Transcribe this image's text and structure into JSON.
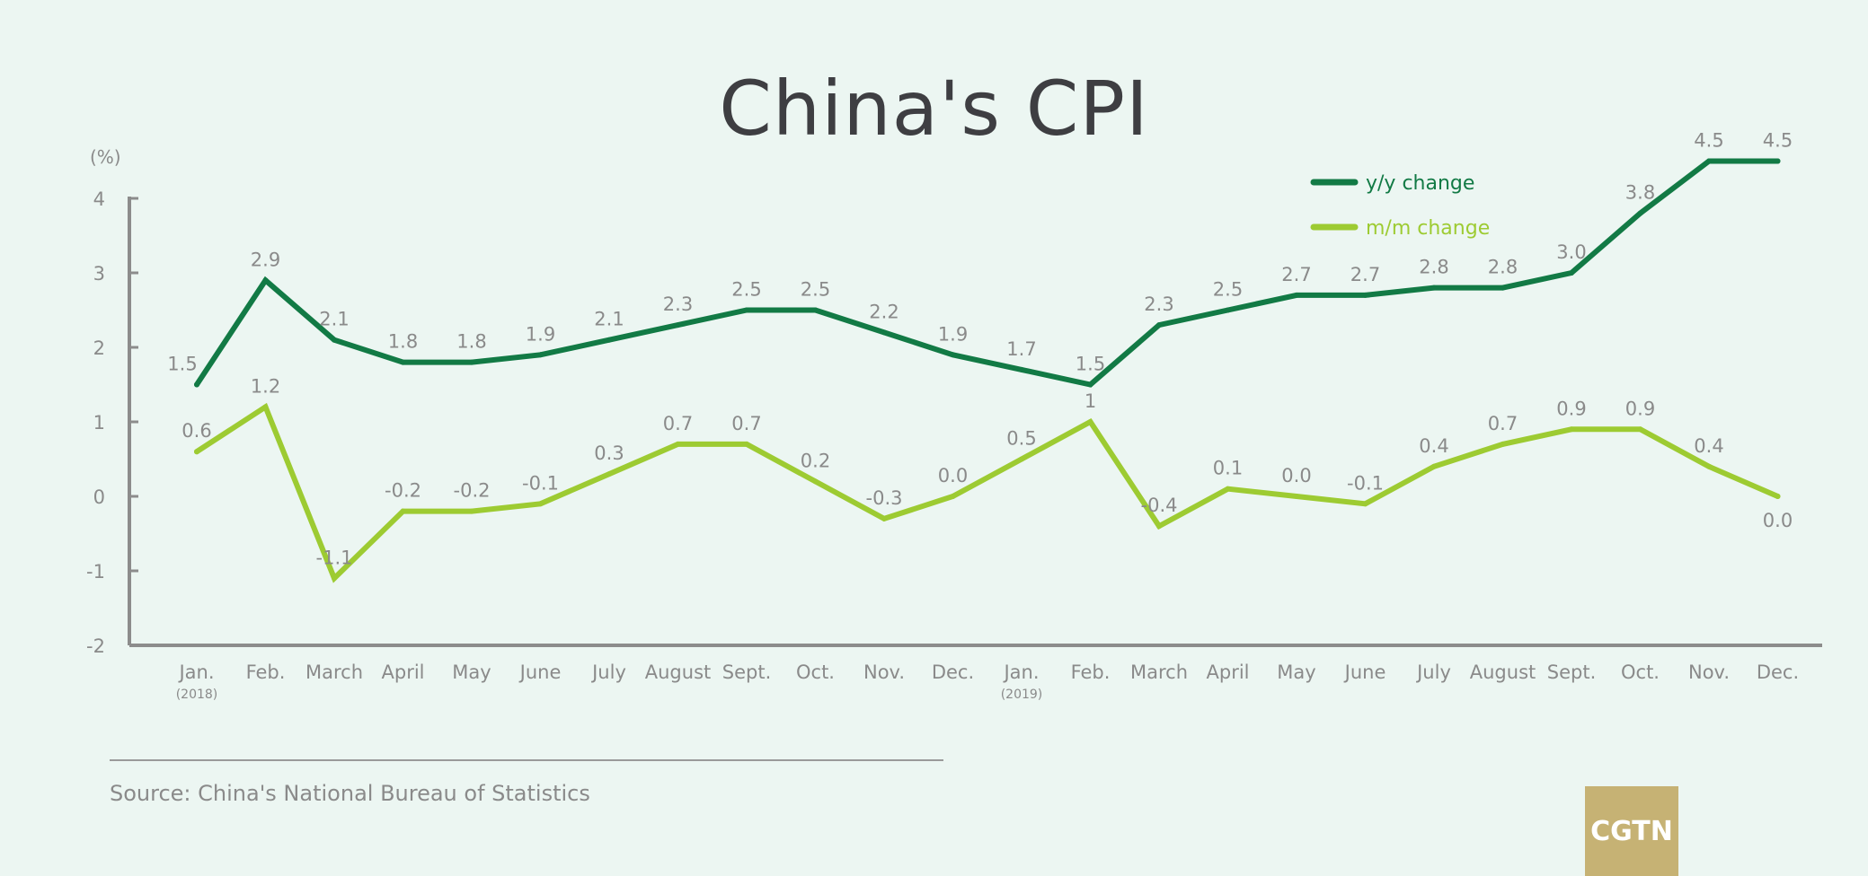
{
  "source_text": "Source: China's National Bureau of Statistics",
  "logo_text": "CGTN",
  "colors": {
    "background": "#ecf6f2",
    "yy": "#127a45",
    "mm": "#9dcb32",
    "axis": "#8c8c8c",
    "label": "#8a8a8a",
    "logo": "#c6b274"
  },
  "chart_data": {
    "type": "line",
    "title": "China's CPI",
    "ylabel": "(%)",
    "ylim": [
      -2,
      4
    ],
    "yticks": [
      -2,
      -1,
      0,
      1,
      2,
      3,
      4
    ],
    "legend_position": "top-right",
    "categories": [
      {
        "label": "Jan.",
        "sub": "(2018)"
      },
      {
        "label": "Feb."
      },
      {
        "label": "March"
      },
      {
        "label": "April"
      },
      {
        "label": "May"
      },
      {
        "label": "June"
      },
      {
        "label": "July"
      },
      {
        "label": "August"
      },
      {
        "label": "Sept."
      },
      {
        "label": "Oct."
      },
      {
        "label": "Nov."
      },
      {
        "label": "Dec."
      },
      {
        "label": "Jan.",
        "sub": "(2019)"
      },
      {
        "label": "Feb."
      },
      {
        "label": "March"
      },
      {
        "label": "April"
      },
      {
        "label": "May"
      },
      {
        "label": "June"
      },
      {
        "label": "July"
      },
      {
        "label": "August"
      },
      {
        "label": "Sept."
      },
      {
        "label": "Oct."
      },
      {
        "label": "Nov."
      },
      {
        "label": "Dec."
      }
    ],
    "series": [
      {
        "name": "y/y change",
        "color": "#127a45",
        "values": [
          1.5,
          2.9,
          2.1,
          1.8,
          1.8,
          1.9,
          2.1,
          2.3,
          2.5,
          2.5,
          2.2,
          1.9,
          1.7,
          1.5,
          2.3,
          2.5,
          2.7,
          2.7,
          2.8,
          2.8,
          3.0,
          3.8,
          4.5,
          4.5
        ],
        "labels": [
          "1.5",
          "2.9",
          "2.1",
          "1.8",
          "1.8",
          "1.9",
          "2.1",
          "2.3",
          "2.5",
          "2.5",
          "2.2",
          "1.9",
          "1.7",
          "1.5",
          "2.3",
          "2.5",
          "2.7",
          "2.7",
          "2.8",
          "2.8",
          "3.0",
          "3.8",
          "4.5",
          "4.5"
        ]
      },
      {
        "name": "m/m change",
        "color": "#9dcb32",
        "values": [
          0.6,
          1.2,
          -1.1,
          -0.2,
          -0.2,
          -0.1,
          0.3,
          0.7,
          0.7,
          0.2,
          -0.3,
          0.0,
          0.5,
          1.0,
          -0.4,
          0.1,
          0.0,
          -0.1,
          0.4,
          0.7,
          0.9,
          0.9,
          0.4,
          0.0
        ],
        "labels": [
          "0.6",
          "1.2",
          "-1.1",
          "-0.2",
          "-0.2",
          "-0.1",
          "0.3",
          "0.7",
          "0.7",
          "0.2",
          "-0.3",
          "0.0",
          "0.5",
          "1",
          "-0.4",
          "0.1",
          "0.0",
          "-0.1",
          "0.4",
          "0.7",
          "0.9",
          "0.9",
          "0.4",
          "0.0"
        ]
      }
    ]
  }
}
